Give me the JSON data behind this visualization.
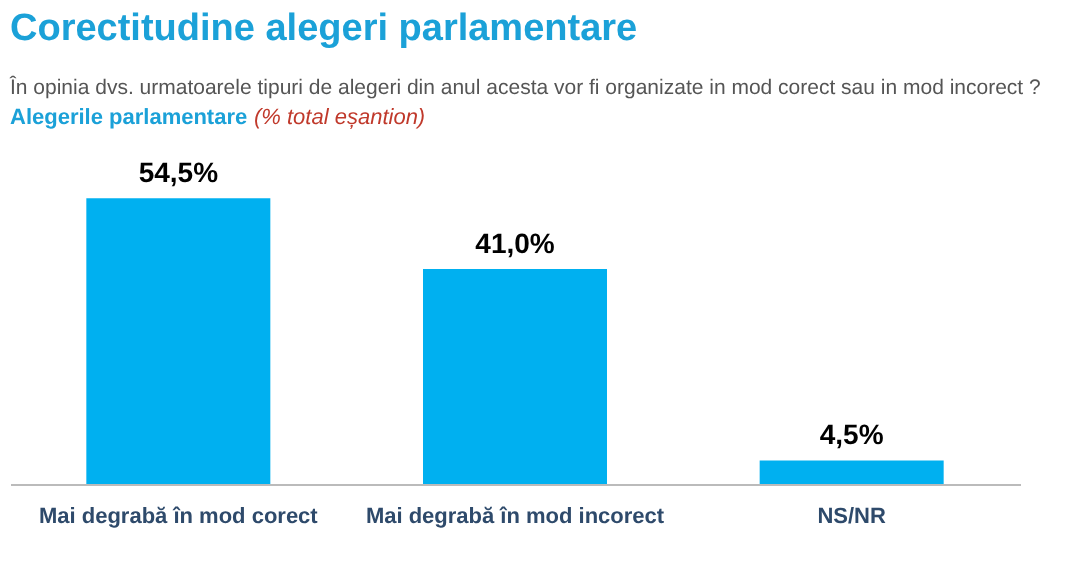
{
  "chart_data": {
    "type": "bar",
    "title": "Corectitudine alegeri parlamentare",
    "subtitle": "În opinia dvs. urmatoarele tipuri de alegeri din anul acesta vor fi organizate in mod corect sau in mod incorect ?",
    "annotations": [
      "Alegerile parlamentare",
      "(% total eșantion)"
    ],
    "categories": [
      "Mai degrabă în mod corect",
      "Mai degrabă în mod incorect",
      "NS/NR"
    ],
    "values": [
      54.5,
      41.0,
      4.5
    ],
    "value_labels": [
      "54,5%",
      "41,0%",
      "4,5%"
    ],
    "color": "#00b0f0",
    "grid": false
  }
}
